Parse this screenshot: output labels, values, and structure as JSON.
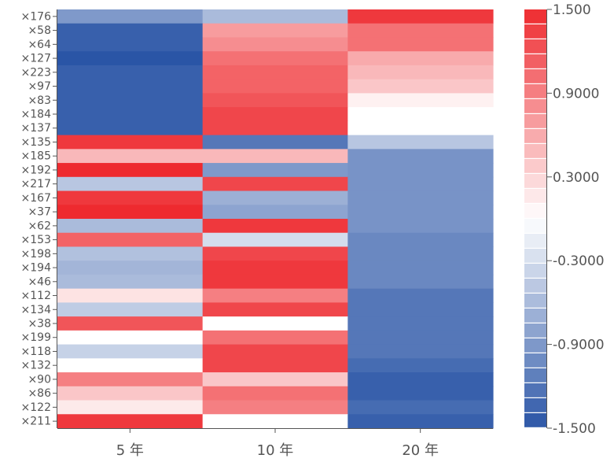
{
  "chart_data": {
    "type": "heatmap",
    "title": "",
    "xlabel": "",
    "ylabel": "",
    "columns": [
      "5 年",
      "10 年",
      "20 年"
    ],
    "rows": [
      "×176",
      "×58",
      "×64",
      "×127",
      "×223",
      "×97",
      "×83",
      "×184",
      "×137",
      "×135",
      "×185",
      "×192",
      "×217",
      "×167",
      "×37",
      "×62",
      "×153",
      "×198",
      "×194",
      "×46",
      "×112",
      "×134",
      "×38",
      "×199",
      "×118",
      "×132",
      "×90",
      "×86",
      "×122",
      "×211"
    ],
    "values": [
      [
        -0.9,
        -0.6,
        1.4
      ],
      [
        -1.4,
        0.7,
        1.0
      ],
      [
        -1.4,
        0.8,
        1.0
      ],
      [
        -1.5,
        1.0,
        0.6
      ],
      [
        -1.4,
        1.1,
        0.5
      ],
      [
        -1.4,
        1.1,
        0.4
      ],
      [
        -1.4,
        1.2,
        0.1
      ],
      [
        -1.4,
        1.3,
        0.0
      ],
      [
        -1.4,
        1.3,
        0.0
      ],
      [
        1.4,
        -1.2,
        -0.5
      ],
      [
        0.5,
        0.5,
        -0.95
      ],
      [
        1.5,
        -0.9,
        -0.95
      ],
      [
        -0.5,
        1.3,
        -0.95
      ],
      [
        1.4,
        -0.7,
        -0.95
      ],
      [
        1.5,
        -0.8,
        -0.95
      ],
      [
        -0.6,
        1.4,
        -0.95
      ],
      [
        1.1,
        -0.3,
        -1.05
      ],
      [
        -0.55,
        1.3,
        -1.05
      ],
      [
        -0.65,
        1.4,
        -1.05
      ],
      [
        -0.6,
        1.4,
        -1.05
      ],
      [
        0.2,
        0.9,
        -1.2
      ],
      [
        -0.45,
        1.3,
        -1.2
      ],
      [
        1.2,
        0.0,
        -1.2
      ],
      [
        0.0,
        1.0,
        -1.2
      ],
      [
        -0.4,
        1.3,
        -1.2
      ],
      [
        0.0,
        1.3,
        -1.3
      ],
      [
        0.9,
        0.4,
        -1.4
      ],
      [
        0.4,
        1.0,
        -1.4
      ],
      [
        0.15,
        0.9,
        -1.3
      ],
      [
        1.4,
        0.0,
        -1.4
      ]
    ],
    "zlim": [
      -1.5,
      1.5
    ],
    "colorbar": {
      "ticks": [
        1.5,
        0.9,
        0.3,
        -0.3,
        -0.9,
        -1.5
      ],
      "tick_labels": [
        "1.500",
        "0.9000",
        "0.3000",
        "-0.3000",
        "-0.9000",
        "-1.500"
      ],
      "steps": 28
    },
    "colors": {
      "low": "#2a55a6",
      "mid": "#ffffff",
      "high": "#ee2a2f"
    },
    "legend": "right"
  }
}
